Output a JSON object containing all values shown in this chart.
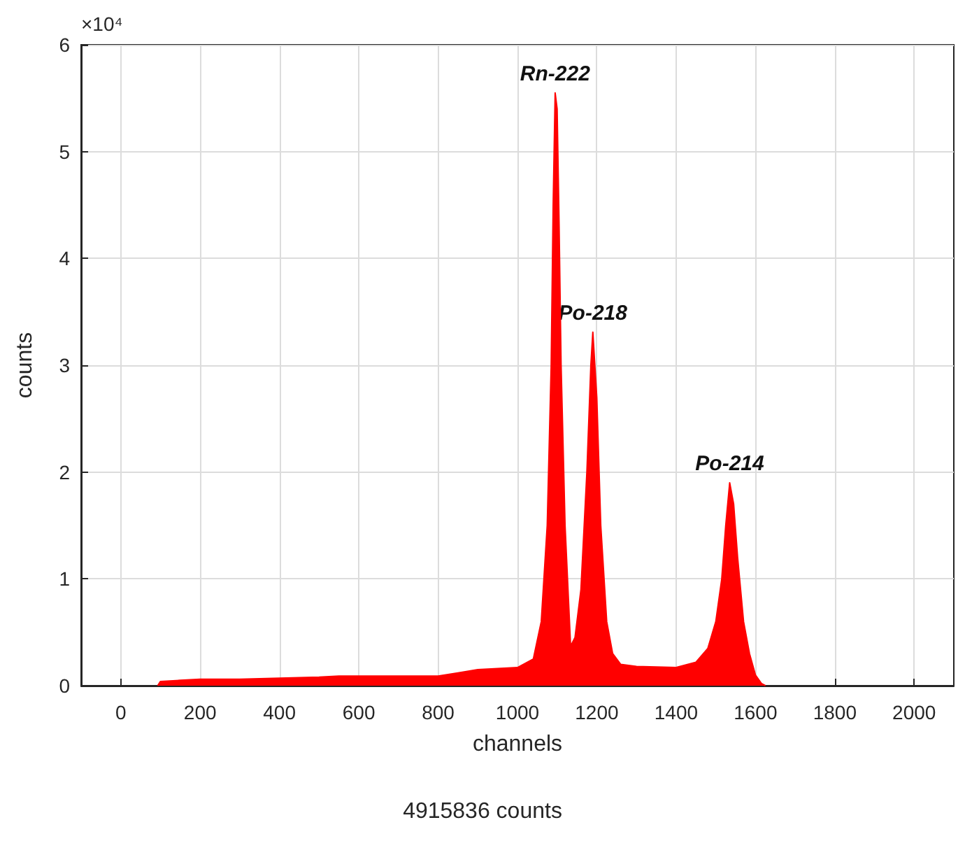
{
  "chart_data": {
    "type": "area",
    "xlabel": "channels",
    "ylabel": "counts",
    "x": [
      93,
      100,
      150,
      200,
      300,
      400,
      500,
      550,
      600,
      700,
      800,
      850,
      900,
      950,
      1000,
      1040,
      1060,
      1075,
      1085,
      1090,
      1095,
      1100,
      1105,
      1110,
      1120,
      1134,
      1145,
      1160,
      1175,
      1185,
      1190,
      1200,
      1210,
      1225,
      1240,
      1260,
      1300,
      1400,
      1450,
      1480,
      1500,
      1515,
      1525,
      1535,
      1545,
      1555,
      1570,
      1585,
      1600,
      1615,
      1625
    ],
    "series": [
      {
        "color": "#ff0000",
        "values": [
          0,
          0.04,
          0.05,
          0.06,
          0.06,
          0.07,
          0.08,
          0.09,
          0.09,
          0.09,
          0.09,
          0.12,
          0.15,
          0.16,
          0.17,
          0.25,
          0.6,
          1.5,
          3,
          4.5,
          5.55,
          5.4,
          4.3,
          3,
          1.5,
          0.37,
          0.45,
          0.9,
          2,
          3,
          3.31,
          2.7,
          1.5,
          0.6,
          0.3,
          0.2,
          0.18,
          0.17,
          0.22,
          0.35,
          0.6,
          1,
          1.5,
          1.9,
          1.7,
          1.2,
          0.6,
          0.3,
          0.1,
          0.02,
          0
        ]
      }
    ],
    "xlim": [
      -100,
      2100
    ],
    "xticks": [
      0,
      200,
      400,
      600,
      800,
      1000,
      1200,
      1400,
      1600,
      1800,
      2000
    ],
    "ylim": [
      0,
      6
    ],
    "yticks": [
      0,
      1,
      2,
      3,
      4,
      5,
      6
    ],
    "grid": true,
    "annotations": [
      "×10⁴",
      "4915836 counts",
      {
        "text": "Rn-222",
        "x": 1095,
        "y": 5.55
      },
      {
        "text": "Po-218",
        "x": 1190,
        "y": 3.31
      },
      {
        "text": "Po-214",
        "x": 1535,
        "y": 1.9
      }
    ]
  }
}
